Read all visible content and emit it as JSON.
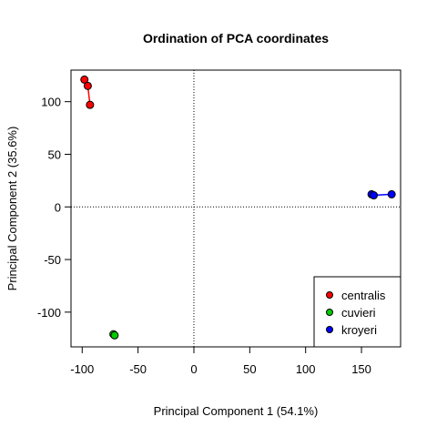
{
  "chart_data": {
    "type": "scatter",
    "title": "Ordination of PCA coordinates",
    "xlabel": "Principal Component 1 (54.1%)",
    "ylabel": "Principal Component 2 (35.6%)",
    "xlim": [
      -110,
      185
    ],
    "ylim": [
      -133,
      130
    ],
    "x_ticks": [
      -100,
      -50,
      0,
      50,
      100,
      150
    ],
    "y_ticks": [
      -100,
      -50,
      0,
      50,
      100
    ],
    "reference_lines": {
      "x": 0,
      "y": 0,
      "style": "dotted"
    },
    "grid": false,
    "legend_position": "bottom-right",
    "series": [
      {
        "name": "centralis",
        "color": "#ff0000",
        "points": [
          [
            -98,
            121
          ],
          [
            -95,
            115
          ],
          [
            -93,
            97
          ]
        ],
        "connected": true
      },
      {
        "name": "cuvieri",
        "color": "#00cc00",
        "points": [
          [
            -72,
            -121
          ],
          [
            -71,
            -122
          ]
        ],
        "connected": true
      },
      {
        "name": "kroyeri",
        "color": "#0000ff",
        "points": [
          [
            159,
            12
          ],
          [
            161,
            11
          ],
          [
            177,
            12
          ]
        ],
        "connected": true
      }
    ]
  }
}
